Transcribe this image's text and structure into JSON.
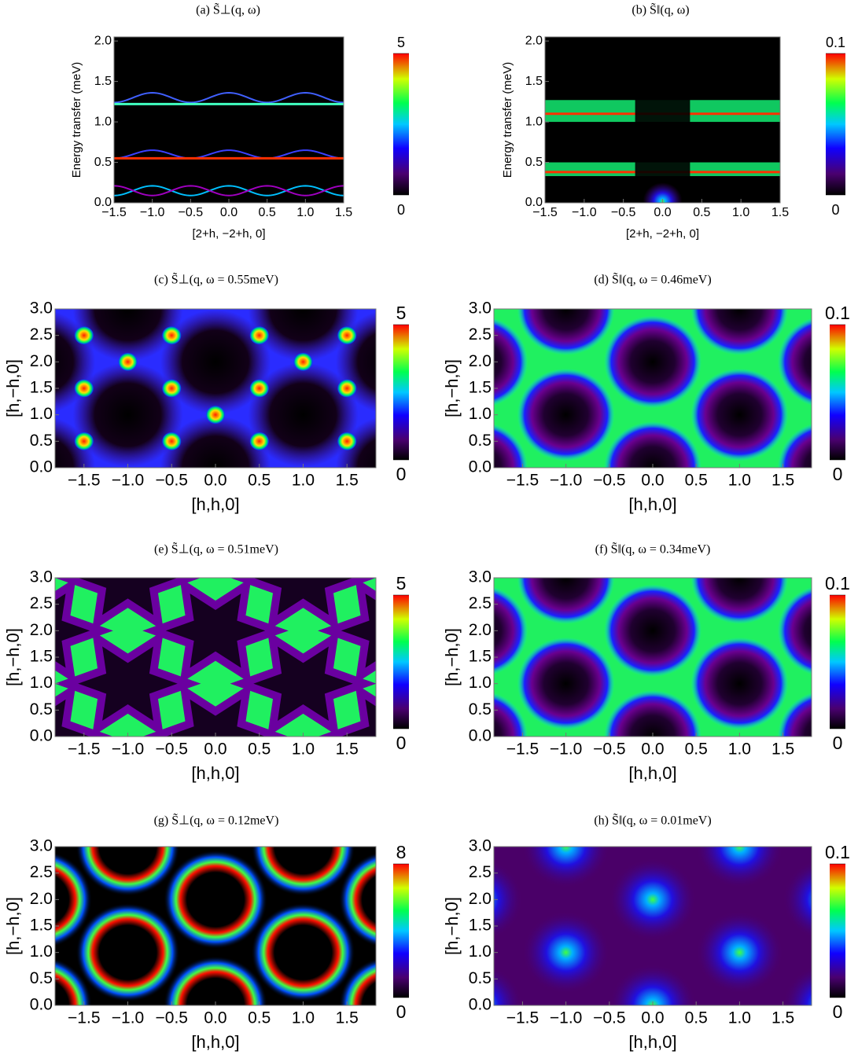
{
  "chart_data": [
    {
      "type": "heatmap",
      "title": "(a) S̃⊥(q, ω)",
      "x_label": "[2+h, −2+h, 0]",
      "y_label": "Energy transfer (meV)",
      "xlim": [
        -1.5,
        1.5
      ],
      "ylim": [
        0,
        2.05
      ],
      "xticks": [
        {
          "value": -1.5,
          "label": "−1.5"
        },
        {
          "value": -1,
          "label": "−1.0"
        },
        {
          "value": -0.5,
          "label": "−0.5"
        },
        {
          "value": 0,
          "label": "0.0"
        },
        0.5,
        {
          "value": 1,
          "label": "1.0"
        },
        1.5
      ],
      "yticks": [
        {
          "value": 0,
          "label": "0.0"
        },
        0.5,
        {
          "value": 1,
          "label": "1.0"
        },
        1.5,
        {
          "value": 2,
          "label": "2.0"
        }
      ],
      "clim": [
        0,
        5
      ],
      "cticks": [
        0,
        5
      ]
    },
    {
      "type": "heatmap",
      "title": "(b) S̃‖(q, ω)",
      "x_label": "[2+h, −2+h, 0]",
      "y_label": "Energy transfer (meV)",
      "xlim": [
        -1.5,
        1.5
      ],
      "ylim": [
        0,
        2.05
      ],
      "xticks": [
        {
          "value": -1.5,
          "label": "−1.5"
        },
        {
          "value": -1,
          "label": "−1.0"
        },
        {
          "value": -0.5,
          "label": "−0.5"
        },
        {
          "value": 0,
          "label": "0.0"
        },
        0.5,
        {
          "value": 1,
          "label": "1.0"
        },
        1.5
      ],
      "yticks": [
        {
          "value": 0,
          "label": "0.0"
        },
        0.5,
        {
          "value": 1,
          "label": "1.0"
        },
        1.5,
        {
          "value": 2,
          "label": "2.0"
        }
      ],
      "clim": [
        0,
        0.1
      ],
      "cticks": [
        0,
        0.1
      ]
    },
    {
      "type": "heatmap",
      "title": "(c) S̃⊥(q, ω = 0.55meV)",
      "x_label": "[h,h,0]",
      "y_label": "[h,−h,0]",
      "xlim": [
        -1.83,
        1.83
      ],
      "ylim": [
        0,
        3
      ],
      "xticks": [
        {
          "value": -1.5,
          "label": "−1.5"
        },
        {
          "value": -1,
          "label": "−1.0"
        },
        {
          "value": -0.5,
          "label": "−0.5"
        },
        {
          "value": 0,
          "label": "0.0"
        },
        0.5,
        {
          "value": 1,
          "label": "1.0"
        },
        1.5
      ],
      "yticks": [
        {
          "value": 0,
          "label": "0.0"
        },
        0.5,
        {
          "value": 1,
          "label": "1.0"
        },
        1.5,
        {
          "value": 2,
          "label": "2.0"
        },
        2.5,
        {
          "value": 3,
          "label": "3.0"
        }
      ],
      "clim": [
        0,
        5
      ],
      "cticks": [
        0,
        5
      ]
    },
    {
      "type": "heatmap",
      "title": "(d) S̃‖(q, ω = 0.46meV)",
      "x_label": "[h,h,0]",
      "y_label": "[h,−h,0]",
      "xlim": [
        -1.83,
        1.83
      ],
      "ylim": [
        0,
        3
      ],
      "xticks": [
        {
          "value": -1.5,
          "label": "−1.5"
        },
        {
          "value": -1,
          "label": "−1.0"
        },
        {
          "value": -0.5,
          "label": "−0.5"
        },
        {
          "value": 0,
          "label": "0.0"
        },
        0.5,
        {
          "value": 1,
          "label": "1.0"
        },
        1.5
      ],
      "yticks": [
        {
          "value": 0,
          "label": "0.0"
        },
        0.5,
        {
          "value": 1,
          "label": "1.0"
        },
        1.5,
        {
          "value": 2,
          "label": "2.0"
        },
        2.5,
        {
          "value": 3,
          "label": "3.0"
        }
      ],
      "clim": [
        0,
        0.1
      ],
      "cticks": [
        0,
        0.1
      ]
    },
    {
      "type": "heatmap",
      "title": "(e) S̃⊥(q, ω = 0.51meV)",
      "x_label": "[h,h,0]",
      "y_label": "[h,−h,0]",
      "xlim": [
        -1.83,
        1.83
      ],
      "ylim": [
        0,
        3
      ],
      "xticks": [
        {
          "value": -1.5,
          "label": "−1.5"
        },
        {
          "value": -1,
          "label": "−1.0"
        },
        {
          "value": -0.5,
          "label": "−0.5"
        },
        {
          "value": 0,
          "label": "0.0"
        },
        0.5,
        {
          "value": 1,
          "label": "1.0"
        },
        1.5
      ],
      "yticks": [
        {
          "value": 0,
          "label": "0.0"
        },
        0.5,
        {
          "value": 1,
          "label": "1.0"
        },
        1.5,
        {
          "value": 2,
          "label": "2.0"
        },
        2.5,
        {
          "value": 3,
          "label": "3.0"
        }
      ],
      "clim": [
        0,
        5
      ],
      "cticks": [
        0,
        5
      ]
    },
    {
      "type": "heatmap",
      "title": "(f) S̃‖(q, ω = 0.34meV)",
      "x_label": "[h,h,0]",
      "y_label": "[h,−h,0]",
      "xlim": [
        -1.83,
        1.83
      ],
      "ylim": [
        0,
        3
      ],
      "xticks": [
        {
          "value": -1.5,
          "label": "−1.5"
        },
        {
          "value": -1,
          "label": "−1.0"
        },
        {
          "value": -0.5,
          "label": "−0.5"
        },
        {
          "value": 0,
          "label": "0.0"
        },
        0.5,
        {
          "value": 1,
          "label": "1.0"
        },
        1.5
      ],
      "yticks": [
        {
          "value": 0,
          "label": "0.0"
        },
        0.5,
        {
          "value": 1,
          "label": "1.0"
        },
        1.5,
        {
          "value": 2,
          "label": "2.0"
        },
        2.5,
        {
          "value": 3,
          "label": "3.0"
        }
      ],
      "clim": [
        0,
        0.1
      ],
      "cticks": [
        0,
        0.1
      ]
    },
    {
      "type": "heatmap",
      "title": "(g) S̃⊥(q, ω = 0.12meV)",
      "x_label": "[h,h,0]",
      "y_label": "[h,−h,0]",
      "xlim": [
        -1.83,
        1.83
      ],
      "ylim": [
        0,
        3
      ],
      "xticks": [
        {
          "value": -1.5,
          "label": "−1.5"
        },
        {
          "value": -1,
          "label": "−1.0"
        },
        {
          "value": -0.5,
          "label": "−0.5"
        },
        {
          "value": 0,
          "label": "0.0"
        },
        0.5,
        {
          "value": 1,
          "label": "1.0"
        },
        1.5
      ],
      "yticks": [
        {
          "value": 0,
          "label": "0.0"
        },
        0.5,
        {
          "value": 1,
          "label": "1.0"
        },
        1.5,
        {
          "value": 2,
          "label": "2.0"
        },
        2.5,
        {
          "value": 3,
          "label": "3.0"
        }
      ],
      "clim": [
        0,
        8
      ],
      "cticks": [
        0,
        8
      ]
    },
    {
      "type": "heatmap",
      "title": "(h) S̃‖(q, ω = 0.01meV)",
      "x_label": "[h,h,0]",
      "y_label": "[h,−h,0]",
      "xlim": [
        -1.83,
        1.83
      ],
      "ylim": [
        0,
        3
      ],
      "xticks": [
        {
          "value": -1.5,
          "label": "−1.5"
        },
        {
          "value": -1,
          "label": "−1.0"
        },
        {
          "value": -0.5,
          "label": "−0.5"
        },
        {
          "value": 0,
          "label": "0.0"
        },
        0.5,
        {
          "value": 1,
          "label": "1.0"
        },
        1.5
      ],
      "yticks": [
        {
          "value": 0,
          "label": "0.0"
        },
        0.5,
        {
          "value": 1,
          "label": "1.0"
        },
        1.5,
        {
          "value": 2,
          "label": "2.0"
        },
        2.5,
        {
          "value": 3,
          "label": "3.0"
        }
      ],
      "clim": [
        0,
        0.1
      ],
      "cticks": [
        0,
        0.1
      ]
    }
  ]
}
